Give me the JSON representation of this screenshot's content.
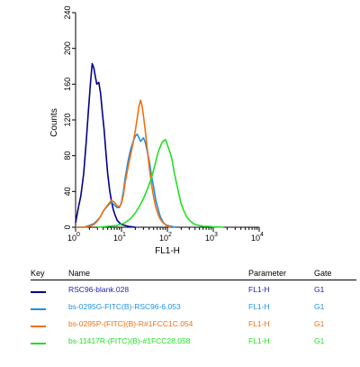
{
  "chart_data": {
    "type": "line",
    "title": "",
    "xlabel": "FL1-H",
    "ylabel": "Counts",
    "xscale": "log",
    "xlim": [
      1,
      10000
    ],
    "ylim": [
      0,
      240
    ],
    "x_tick_labels": [
      {
        "mantissa": "10",
        "exp": "0",
        "value": 1
      },
      {
        "mantissa": "10",
        "exp": "1",
        "value": 10
      },
      {
        "mantissa": "10",
        "exp": "2",
        "value": 100
      },
      {
        "mantissa": "10",
        "exp": "3",
        "value": 1000
      },
      {
        "mantissa": "10",
        "exp": "4",
        "value": 10000
      }
    ],
    "y_ticks": [
      "0",
      "40",
      "80",
      "120",
      "160",
      "200",
      "240"
    ],
    "grid": false,
    "legend_position": "below",
    "series": [
      {
        "name": "RSC96-blank.028",
        "color": "#00008b",
        "x": [
          1.0,
          1.15,
          1.3,
          1.5,
          1.7,
          1.9,
          2.1,
          2.3,
          2.5,
          2.7,
          2.9,
          3.2,
          3.5,
          3.8,
          4.2,
          4.6,
          5.0,
          5.5,
          6.0,
          6.6,
          7.2,
          8.0,
          9.0,
          10.0,
          12.0,
          14.0,
          17.0,
          20.0
        ],
        "y": [
          5,
          22,
          35,
          60,
          95,
          130,
          160,
          183,
          178,
          168,
          160,
          162,
          150,
          130,
          108,
          82,
          60,
          42,
          30,
          20,
          14,
          8,
          5,
          3,
          2,
          1,
          0.5,
          0
        ]
      },
      {
        "name": "bs-0295G-FITC(B)-RSC96-6.053",
        "color": "#1e90e6",
        "x": [
          1.0,
          1.5,
          2.0,
          2.5,
          3.0,
          3.5,
          4.0,
          5.0,
          6.0,
          7.0,
          8.0,
          9.0,
          10.0,
          11.0,
          12.0,
          14.0,
          16.0,
          18.0,
          20.0,
          22.0,
          24.0,
          26.0,
          28.0,
          30.0,
          33.0,
          36.0,
          40.0,
          45.0,
          50.0,
          56.0,
          63.0,
          70.0,
          80.0,
          90.0,
          100.0,
          120.0,
          150.0
        ],
        "y": [
          0,
          0,
          2,
          4,
          8,
          12,
          18,
          24,
          28,
          25,
          22,
          22,
          28,
          40,
          55,
          75,
          88,
          96,
          102,
          104,
          100,
          96,
          98,
          100,
          95,
          86,
          75,
          58,
          45,
          30,
          20,
          12,
          6,
          3,
          2,
          1,
          0
        ]
      },
      {
        "name": "bs-0295P-(FITC)(B)-R#1FCC1C.054",
        "color": "#f07010",
        "x": [
          1.0,
          1.5,
          2.0,
          2.5,
          3.0,
          3.5,
          4.0,
          5.0,
          6.0,
          7.0,
          8.0,
          9.0,
          10.0,
          11.0,
          12.0,
          14.0,
          16.0,
          18.0,
          20.0,
          22.0,
          24.0,
          26.0,
          28.0,
          30.0,
          33.0,
          36.0,
          40.0,
          45.0,
          50.0,
          56.0,
          63.0,
          70.0,
          80.0,
          90.0,
          100.0,
          120.0
        ],
        "y": [
          0,
          0,
          1,
          3,
          7,
          12,
          18,
          25,
          30,
          28,
          24,
          23,
          27,
          36,
          50,
          68,
          82,
          95,
          108,
          122,
          135,
          142,
          136,
          125,
          108,
          90,
          68,
          48,
          34,
          22,
          14,
          9,
          5,
          3,
          1,
          0
        ]
      },
      {
        "name": "bs-11417R-(FITC)(B)-#1FCC28.058",
        "color": "#22e022",
        "x": [
          3.0,
          5.0,
          8.0,
          12.0,
          16.0,
          20.0,
          25.0,
          30.0,
          35.0,
          40.0,
          45.0,
          50.0,
          55.0,
          60.0,
          65.0,
          70.0,
          75.0,
          80.0,
          85.0,
          90.0,
          95.0,
          100.0,
          110.0,
          120.0,
          130.0,
          140.0,
          160.0,
          180.0,
          200.0,
          230.0,
          260.0,
          300.0,
          350.0,
          400.0,
          500.0,
          600.0,
          800.0,
          1000.0,
          1300.0,
          1700.0
        ],
        "y": [
          0,
          1,
          2,
          5,
          10,
          16,
          24,
          32,
          40,
          48,
          55,
          64,
          72,
          80,
          86,
          90,
          94,
          96,
          97,
          98,
          96,
          92,
          86,
          80,
          72,
          62,
          48,
          36,
          26,
          18,
          12,
          8,
          5,
          3,
          2,
          1,
          1,
          0.5,
          0.3,
          0
        ]
      }
    ]
  },
  "legend_table": {
    "headers": {
      "key": "Key",
      "name": "Name",
      "parameter": "Parameter",
      "gate": "Gate"
    },
    "rows": [
      {
        "name": "RSC96-blank.028",
        "parameter": "FL1-H",
        "gate": "G1",
        "color": "#00008b",
        "text_color": "#1f1fb4"
      },
      {
        "name": "bs-0295G-FITC(B)-RSC96-6.053",
        "parameter": "FL1-H",
        "gate": "G1",
        "color": "#1e90e6",
        "text_color": "#1e90e6"
      },
      {
        "name": "bs-0295P-(FITC)(B)-R#1FCC1C.054",
        "parameter": "FL1-H",
        "gate": "G1",
        "color": "#f07010",
        "text_color": "#f07010"
      },
      {
        "name": "bs-11417R-(FITC)(B)-#1FCC28.058",
        "parameter": "FL1-H",
        "gate": "G1",
        "color": "#22e022",
        "text_color": "#22e022"
      }
    ]
  }
}
